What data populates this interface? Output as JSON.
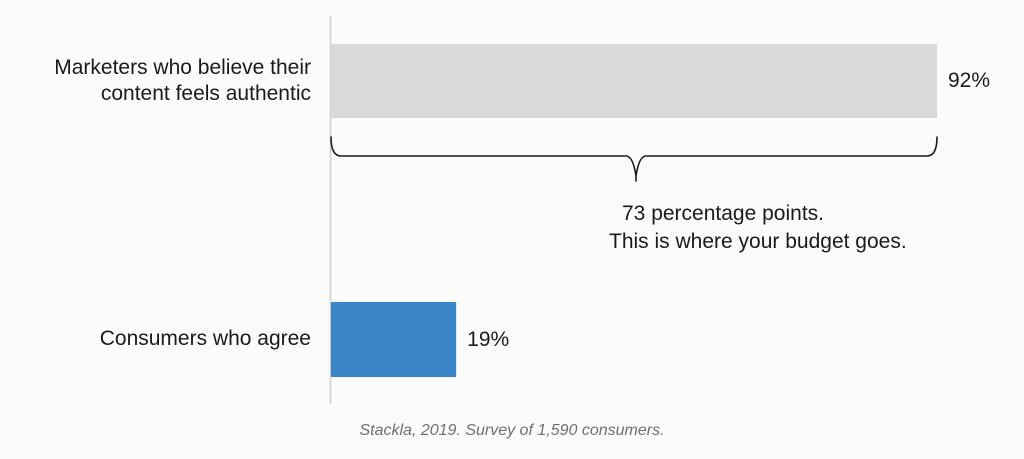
{
  "chart_data": {
    "type": "bar",
    "orientation": "horizontal",
    "categories": [
      [
        "Marketers who believe their",
        "content feels authentic"
      ],
      [
        "Consumers who agree"
      ]
    ],
    "values": [
      92,
      19
    ],
    "value_labels": [
      "92%",
      "19%"
    ],
    "xlim": [
      0,
      100
    ],
    "colors": [
      "#d9d9d9",
      "#3a86c6"
    ],
    "grid": false,
    "annotation": {
      "line1": "73 percentage points.",
      "line2": "This is where your budget goes."
    },
    "source": "Stackla, 2019. Survey of 1,590 consumers."
  }
}
